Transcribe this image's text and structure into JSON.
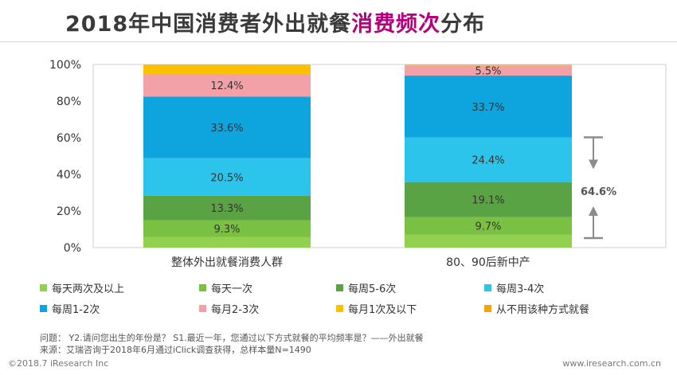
{
  "title": {
    "part1": "2018年中国消费者外出就餐",
    "highlight": "消费频次",
    "part2": "分布"
  },
  "chart_data": {
    "type": "bar",
    "stacked": true,
    "categories": [
      "整体外出就餐消费人群",
      "80、90后新中产"
    ],
    "ylim": [
      0,
      100
    ],
    "yticks": [
      "0%",
      "20%",
      "40%",
      "60%",
      "80%",
      "100%"
    ],
    "series": [
      {
        "name": "每天两次及以上",
        "color": "#92d050",
        "values": [
          5.7,
          7.0
        ],
        "labels": [
          "",
          ""
        ]
      },
      {
        "name": "每天一次",
        "color": "#7ac143",
        "values": [
          9.3,
          9.7
        ],
        "labels": [
          "9.3%",
          "9.7%"
        ]
      },
      {
        "name": "每周5-6次",
        "color": "#5aa345",
        "values": [
          13.3,
          19.1
        ],
        "labels": [
          "13.3%",
          "19.1%"
        ]
      },
      {
        "name": "每周3-4次",
        "color": "#2cc4ea",
        "values": [
          20.5,
          24.4
        ],
        "labels": [
          "20.5%",
          "24.4%"
        ]
      },
      {
        "name": "每周1-2次",
        "color": "#0ea5df",
        "values": [
          33.6,
          33.7
        ],
        "labels": [
          "33.6%",
          "33.7%"
        ]
      },
      {
        "name": "每月2-3次",
        "color": "#f3a1a8",
        "values": [
          12.4,
          5.5
        ],
        "labels": [
          "12.4%",
          "5.5%"
        ]
      },
      {
        "name": "每月1次及以下",
        "color": "#ffc000",
        "values": [
          5.2,
          0.6
        ],
        "labels": [
          "",
          ""
        ]
      },
      {
        "name": "从不用该种方式就餐",
        "color": "#f4a30a",
        "values": [
          0,
          0
        ],
        "labels": [
          "",
          ""
        ]
      }
    ],
    "annotation": "64.6%"
  },
  "notes": {
    "question": "问题： Y2.请问您出生的年份是？ S1.最近一年，您通过以下方式就餐的平均频率是？——外出就餐",
    "source": "来源：艾瑞咨询于2018年6月通过iClick调查获得，总样本量N=1490"
  },
  "footer": {
    "left": "©2018.7 iResearch Inc",
    "right": "www.iresearch.com.cn"
  }
}
